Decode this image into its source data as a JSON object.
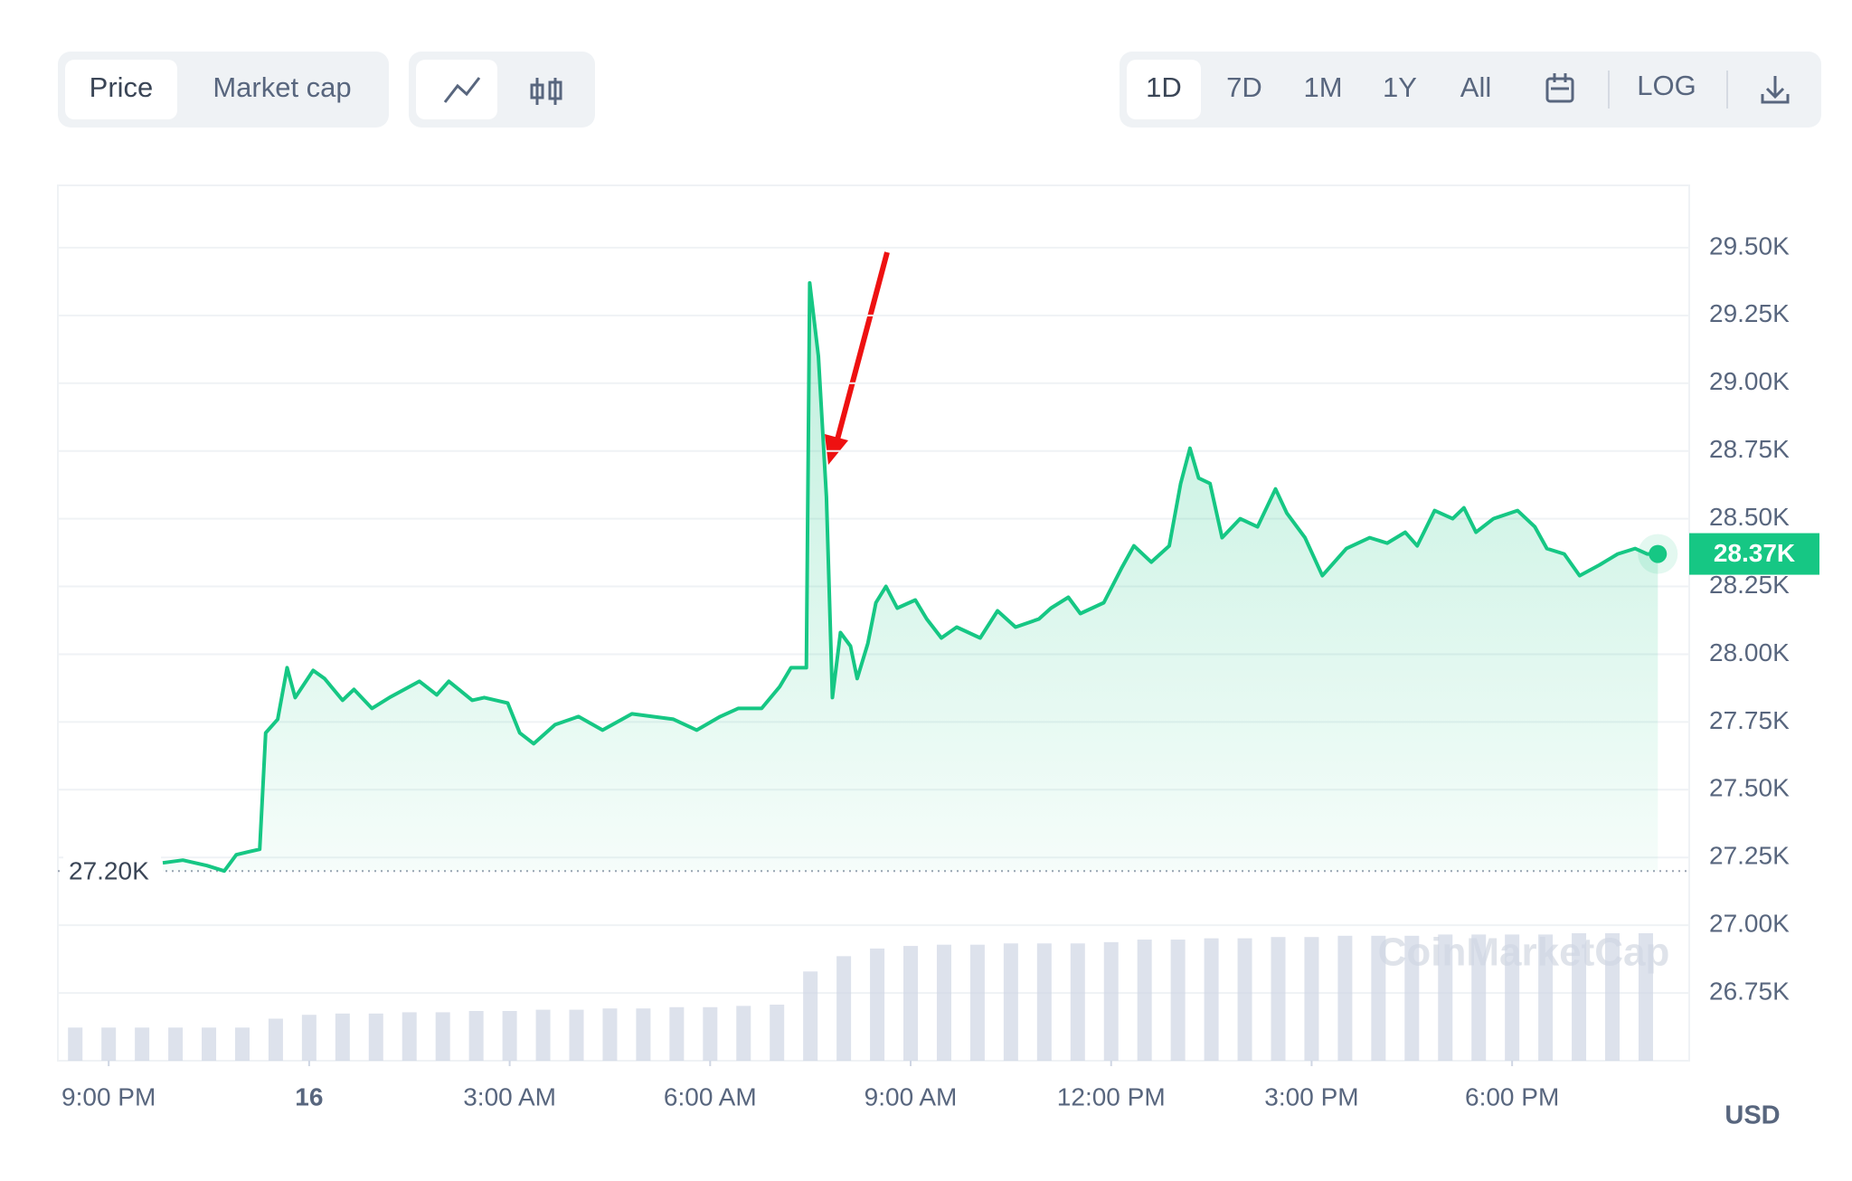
{
  "toolbar": {
    "tabs": [
      "Price",
      "Market cap"
    ],
    "ranges": [
      "1D",
      "7D",
      "1M",
      "1Y",
      "All"
    ],
    "log": "LOG"
  },
  "currency": "USD",
  "watermark": "CoinMarketCap",
  "chart_data": {
    "type": "line",
    "color": "#16c784",
    "x": [
      -2.19,
      -1.89,
      -1.53,
      -1.27,
      -1.09,
      -0.92,
      -0.74,
      -0.65,
      -0.47,
      -0.33,
      -0.21,
      0.06,
      0.23,
      0.5,
      0.67,
      0.94,
      1.2,
      1.65,
      1.91,
      2.09,
      2.44,
      2.62,
      2.97,
      3.15,
      3.36,
      3.68,
      4.03,
      4.39,
      4.83,
      5.45,
      5.8,
      6.15,
      6.42,
      6.77,
      7.04,
      7.21,
      7.44,
      7.49,
      7.62,
      7.74,
      7.83,
      7.95,
      8.1,
      8.2,
      8.36,
      8.48,
      8.63,
      8.8,
      9.07,
      9.24,
      9.46,
      9.69,
      10.04,
      10.3,
      10.57,
      10.92,
      11.1,
      11.36,
      11.54,
      11.89,
      12.16,
      12.34,
      12.6,
      12.87,
      13.04,
      13.18,
      13.31,
      13.48,
      13.66,
      13.93,
      14.19,
      14.46,
      14.63,
      14.9,
      15.16,
      15.52,
      15.87,
      16.13,
      16.4,
      16.58,
      16.84,
      17.11,
      17.28,
      17.46,
      17.72,
      18.08,
      18.34,
      18.52,
      18.78,
      19.01,
      19.31,
      19.58,
      19.84,
      20.02,
      20.18
    ],
    "values": [
      27.23,
      27.24,
      27.22,
      27.2,
      27.26,
      27.27,
      27.28,
      27.71,
      27.76,
      27.95,
      27.84,
      27.94,
      27.91,
      27.83,
      27.87,
      27.8,
      27.84,
      27.9,
      27.85,
      27.9,
      27.83,
      27.84,
      27.82,
      27.71,
      27.67,
      27.74,
      27.77,
      27.72,
      27.78,
      27.76,
      27.72,
      27.77,
      27.8,
      27.8,
      27.88,
      27.95,
      27.95,
      29.37,
      29.1,
      28.58,
      27.84,
      28.08,
      28.03,
      27.91,
      28.04,
      28.19,
      28.25,
      28.17,
      28.2,
      28.13,
      28.06,
      28.1,
      28.06,
      28.16,
      28.1,
      28.13,
      28.17,
      28.21,
      28.15,
      28.19,
      28.32,
      28.4,
      28.34,
      28.4,
      28.63,
      28.76,
      28.65,
      28.63,
      28.43,
      28.5,
      28.47,
      28.61,
      28.52,
      28.43,
      28.29,
      28.39,
      28.43,
      28.41,
      28.45,
      28.4,
      28.53,
      28.5,
      28.54,
      28.45,
      28.5,
      28.53,
      28.47,
      28.39,
      28.37,
      28.29,
      28.33,
      28.37,
      28.39,
      28.37,
      28.37
    ],
    "last_price": {
      "value": 28.37,
      "label": "28.37K"
    },
    "reference": {
      "value": 27.2,
      "label": "27.20K"
    },
    "xlim": [
      -3.76,
      20.65
    ],
    "xticks": [
      {
        "value": -3,
        "label": "9:00 PM"
      },
      {
        "value": 0,
        "label": "16"
      },
      {
        "value": 3,
        "label": "3:00 AM"
      },
      {
        "value": 6,
        "label": "6:00 AM"
      },
      {
        "value": 9,
        "label": "9:00 AM"
      },
      {
        "value": 12,
        "label": "12:00 PM"
      },
      {
        "value": 15,
        "label": "3:00 PM"
      },
      {
        "value": 18,
        "label": "6:00 PM"
      }
    ],
    "ylim": [
      26.5,
      29.73
    ],
    "yticks": [
      {
        "value": 26.75,
        "label": "26.75K"
      },
      {
        "value": 27,
        "label": "27.00K"
      },
      {
        "value": 27.25,
        "label": "27.25K"
      },
      {
        "value": 27.5,
        "label": "27.50K"
      },
      {
        "value": 27.75,
        "label": "27.75K"
      },
      {
        "value": 28,
        "label": "28.00K"
      },
      {
        "value": 28.25,
        "label": "28.25K"
      },
      {
        "value": 28.5,
        "label": "28.50K"
      },
      {
        "value": 28.75,
        "label": "28.75K"
      },
      {
        "value": 29,
        "label": "29.00K"
      },
      {
        "value": 29.25,
        "label": "29.25K"
      },
      {
        "value": 29.5,
        "label": "29.50K"
      }
    ],
    "grid": true,
    "volume": {
      "color": "#cfd6e4",
      "x": [
        -3.5,
        -3,
        -2.5,
        -2,
        -1.5,
        -1,
        -0.5,
        0,
        0.5,
        1,
        1.5,
        2,
        2.5,
        3,
        3.5,
        4,
        4.5,
        5,
        5.5,
        6,
        6.5,
        7,
        7.5,
        8,
        8.5,
        9,
        9.5,
        10,
        10.5,
        11,
        11.5,
        12,
        12.5,
        13,
        13.5,
        14,
        14.5,
        15,
        15.5,
        16,
        16.5,
        17,
        17.5,
        18,
        18.5,
        19,
        19.5,
        20
      ],
      "values": [
        26,
        26,
        26,
        26,
        26,
        26,
        33,
        36,
        37,
        37,
        38,
        38,
        39,
        39,
        40,
        40,
        41,
        41,
        42,
        42,
        43,
        44,
        70,
        82,
        88,
        90,
        91,
        91,
        92,
        92,
        92,
        93,
        95,
        95,
        96,
        96,
        97,
        97,
        98,
        98,
        98,
        99,
        99,
        99,
        99,
        100,
        100,
        100
      ]
    }
  }
}
